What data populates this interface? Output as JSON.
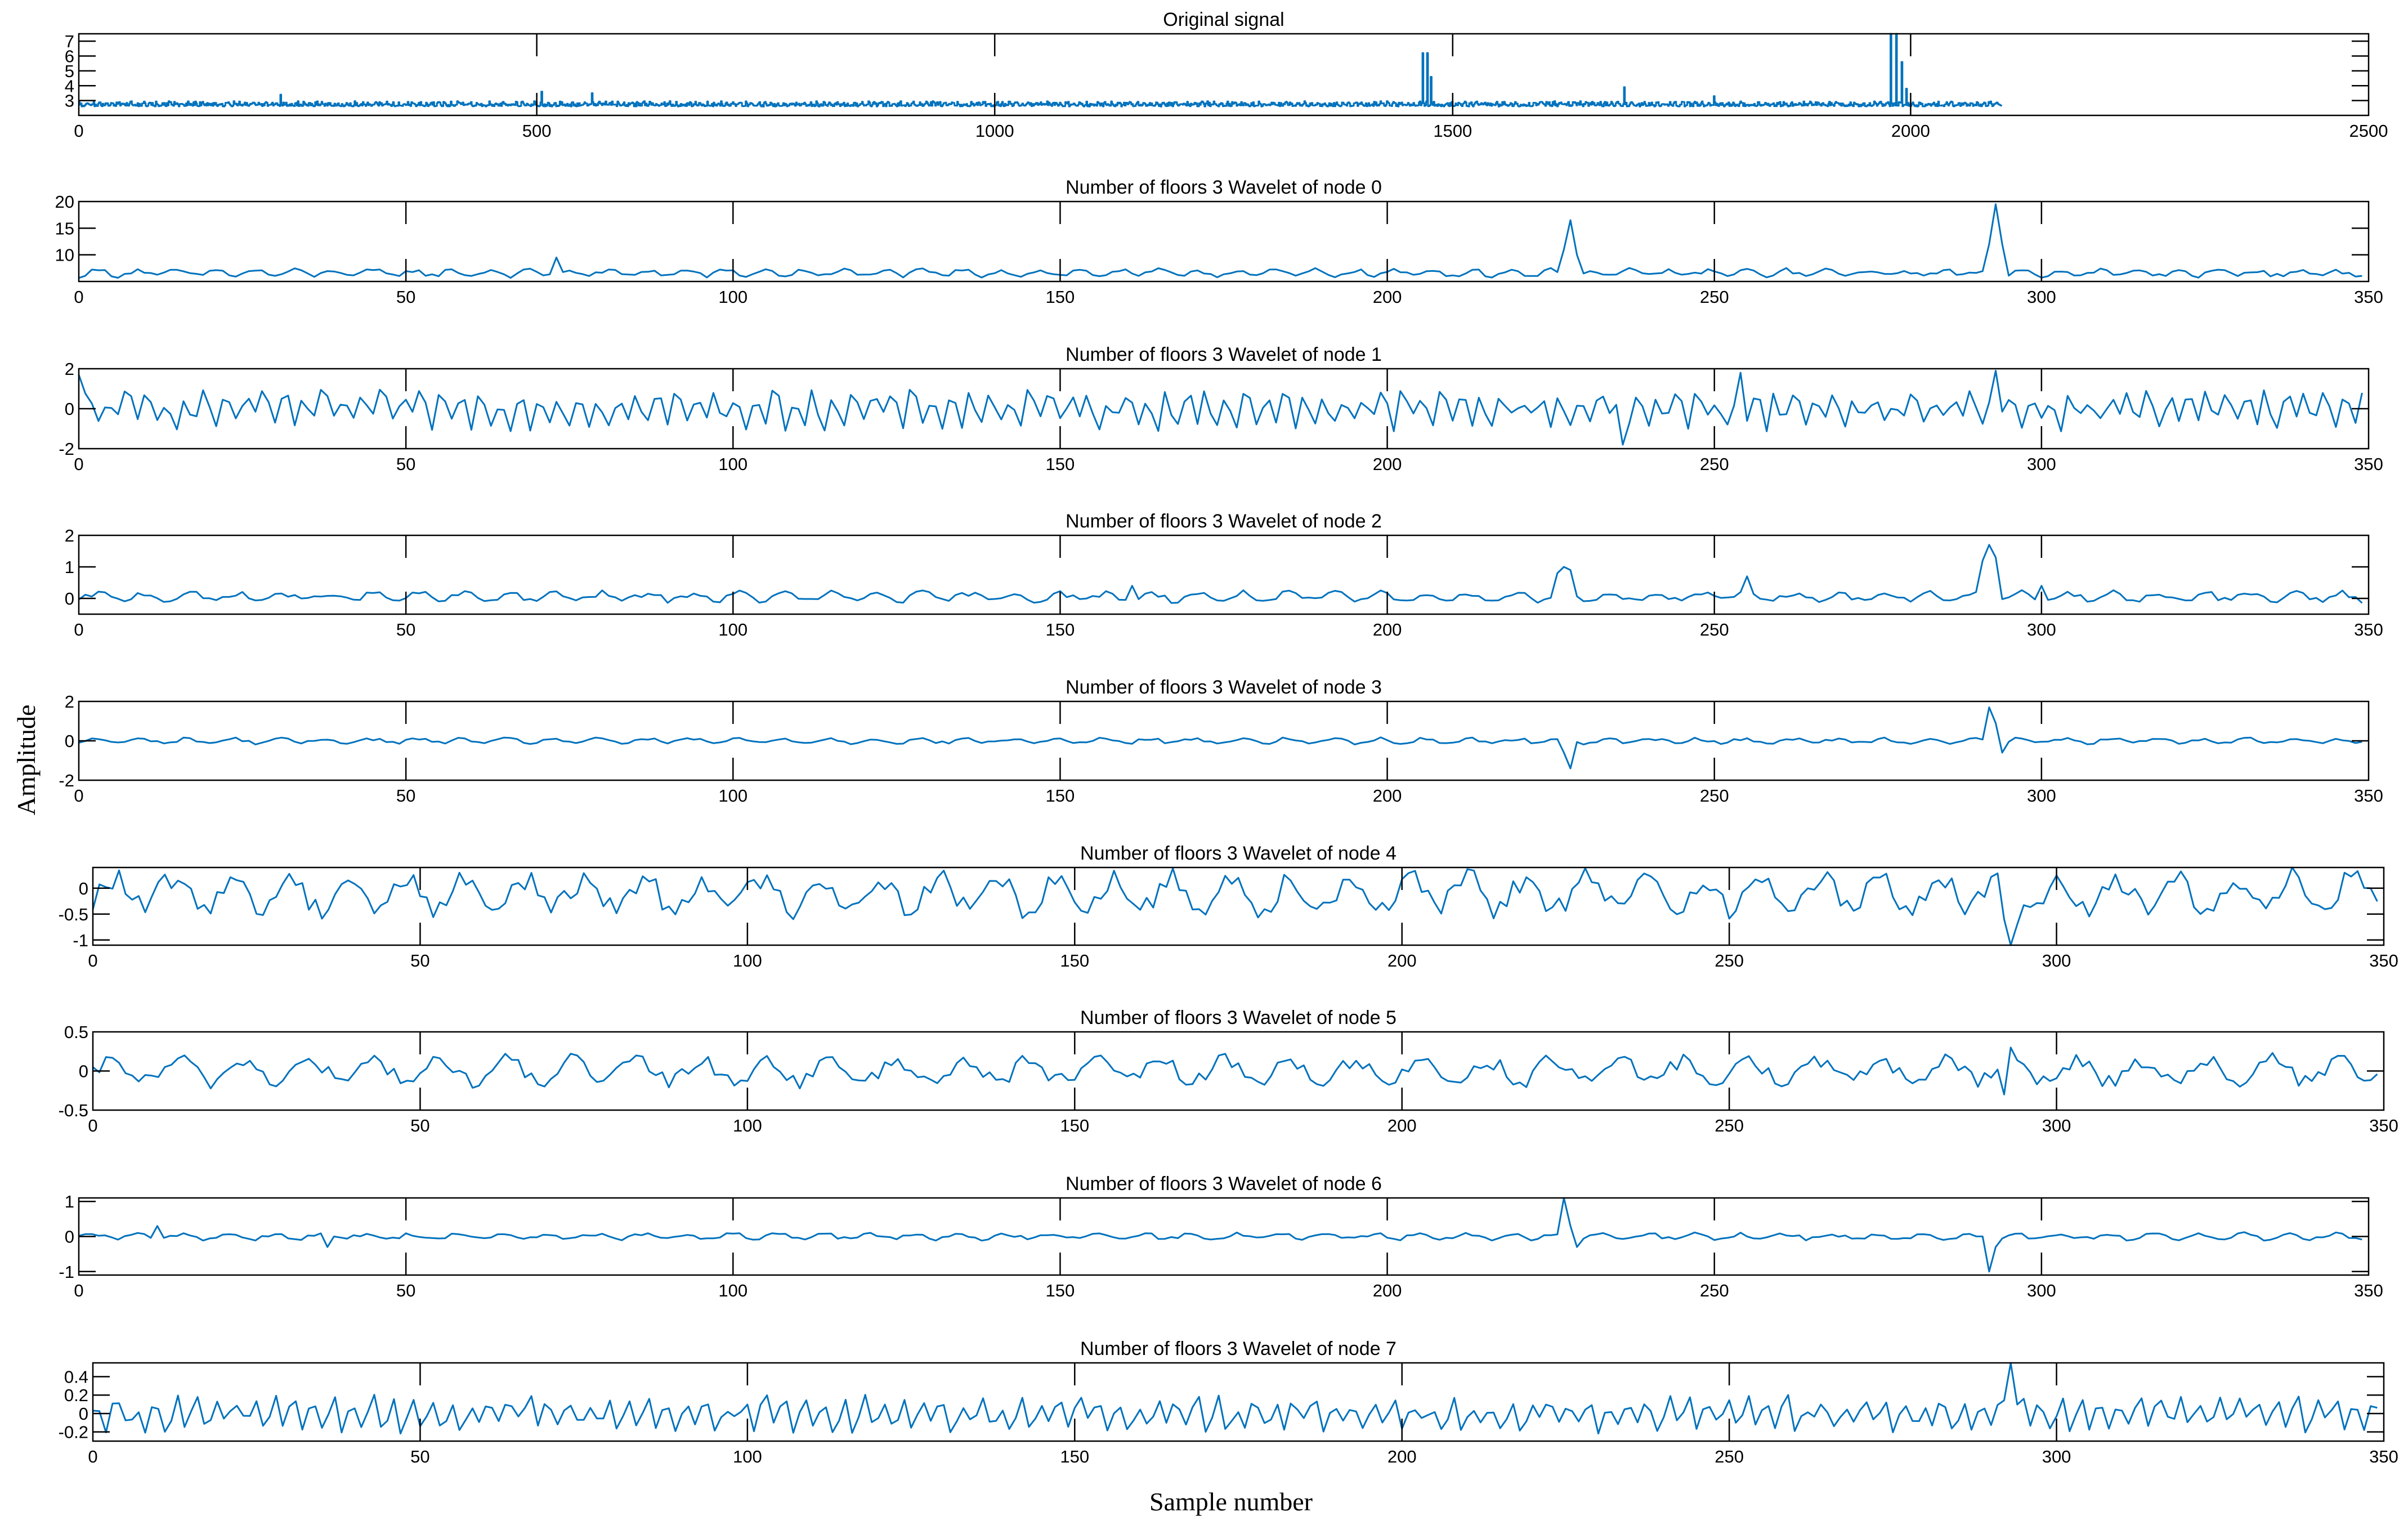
{
  "figure": {
    "xlabel": "Sample number",
    "ylabel": "Amplitude",
    "line_color": "#0072BD"
  },
  "chart_data": [
    {
      "type": "line",
      "title": "Original signal",
      "xlim": [
        0,
        2500
      ],
      "ylim": [
        2,
        7.5
      ],
      "xticks": [
        0,
        500,
        1000,
        1500,
        2000,
        2500
      ],
      "yticks": [
        3,
        4,
        5,
        6,
        7
      ],
      "step": true,
      "n_points": 2100,
      "baseline": 2.6,
      "noise": 0.35,
      "noise_period": 14,
      "spikes": [
        {
          "x": 220,
          "y": 3.4
        },
        {
          "x": 505,
          "y": 3.6
        },
        {
          "x": 560,
          "y": 3.5
        },
        {
          "x": 1467,
          "y": 6.2
        },
        {
          "x": 1472,
          "y": 6.2
        },
        {
          "x": 1476,
          "y": 4.6
        },
        {
          "x": 1687,
          "y": 3.9
        },
        {
          "x": 1785,
          "y": 3.3
        },
        {
          "x": 1978,
          "y": 7.6
        },
        {
          "x": 1984,
          "y": 7.6
        },
        {
          "x": 1990,
          "y": 5.6
        },
        {
          "x": 1995,
          "y": 3.8
        }
      ]
    },
    {
      "type": "line",
      "title": "Number of floors 3  Wavelet of node 0",
      "xlim": [
        0,
        350
      ],
      "ylim": [
        5,
        20
      ],
      "xticks": [
        0,
        50,
        100,
        150,
        200,
        250,
        300,
        350
      ],
      "yticks": [
        10,
        15,
        20
      ],
      "n_points": 350,
      "baseline": 6.6,
      "noise": 0.9,
      "noise_period": 6,
      "spikes": [
        {
          "x": 73,
          "y": 9.5
        },
        {
          "x": 227,
          "y": 11
        },
        {
          "x": 228,
          "y": 16.5
        },
        {
          "x": 229,
          "y": 10
        },
        {
          "x": 292,
          "y": 12
        },
        {
          "x": 293,
          "y": 19.5
        },
        {
          "x": 294,
          "y": 12
        }
      ]
    },
    {
      "type": "line",
      "title": "Number of floors 3  Wavelet of node 1",
      "xlim": [
        0,
        350
      ],
      "ylim": [
        -2,
        2
      ],
      "xticks": [
        0,
        50,
        100,
        150,
        200,
        250,
        300,
        350
      ],
      "yticks": [
        -2,
        0,
        2
      ],
      "n_points": 350,
      "baseline": 0,
      "noise": 1.1,
      "noise_period": 3,
      "spikes": [
        {
          "x": 0,
          "y": 1.7
        },
        {
          "x": 236,
          "y": -1.8
        },
        {
          "x": 254,
          "y": 1.8
        },
        {
          "x": 293,
          "y": 1.9
        }
      ]
    },
    {
      "type": "line",
      "title": "Number of floors 3  Wavelet of node 2",
      "xlim": [
        0,
        350
      ],
      "ylim": [
        -0.5,
        2
      ],
      "xticks": [
        0,
        50,
        100,
        150,
        200,
        250,
        300,
        350
      ],
      "yticks": [
        0,
        1,
        2
      ],
      "n_points": 350,
      "baseline": 0.05,
      "noise": 0.2,
      "noise_period": 7,
      "spikes": [
        {
          "x": 161,
          "y": 0.4
        },
        {
          "x": 226,
          "y": 0.8
        },
        {
          "x": 227,
          "y": 1.0
        },
        {
          "x": 228,
          "y": 0.9
        },
        {
          "x": 255,
          "y": 0.7
        },
        {
          "x": 291,
          "y": 1.2
        },
        {
          "x": 292,
          "y": 1.7
        },
        {
          "x": 293,
          "y": 1.3
        },
        {
          "x": 300,
          "y": 0.4
        }
      ]
    },
    {
      "type": "line",
      "title": "Number of floors 3  Wavelet of node 3",
      "xlim": [
        0,
        350
      ],
      "ylim": [
        -2,
        2
      ],
      "xticks": [
        0,
        50,
        100,
        150,
        200,
        250,
        300,
        350
      ],
      "yticks": [
        -2,
        0,
        2
      ],
      "n_points": 350,
      "baseline": 0,
      "noise": 0.18,
      "noise_period": 7,
      "spikes": [
        {
          "x": 227,
          "y": -0.6
        },
        {
          "x": 228,
          "y": -1.4
        },
        {
          "x": 292,
          "y": 1.7
        },
        {
          "x": 293,
          "y": 0.9
        },
        {
          "x": 294,
          "y": -0.6
        }
      ]
    },
    {
      "type": "line",
      "title": "Number of floors 3  Wavelet of node 4",
      "xlim": [
        0,
        350
      ],
      "ylim": [
        -1.1,
        0.4
      ],
      "xticks": [
        0,
        50,
        100,
        150,
        200,
        250,
        300,
        350
      ],
      "yticks": [
        -1,
        -0.5,
        0
      ],
      "n_points": 350,
      "baseline": -0.1,
      "noise": 0.5,
      "noise_period": 9,
      "spikes": [
        {
          "x": 292,
          "y": -0.6
        },
        {
          "x": 293,
          "y": -1.1
        },
        {
          "x": 294,
          "y": -0.7
        }
      ]
    },
    {
      "type": "line",
      "title": "Number of floors 3  Wavelet of node 5",
      "xlim": [
        0,
        350
      ],
      "ylim": [
        -0.5,
        0.5
      ],
      "xticks": [
        0,
        50,
        100,
        150,
        200,
        250,
        300,
        350
      ],
      "yticks": [
        -0.5,
        0,
        0.5
      ],
      "n_points": 350,
      "baseline": 0,
      "noise": 0.22,
      "noise_period": 10,
      "spikes": [
        {
          "x": 292,
          "y": -0.3
        },
        {
          "x": 293,
          "y": 0.3
        }
      ]
    },
    {
      "type": "line",
      "title": "Number of floors 3  Wavelet of node 6",
      "xlim": [
        0,
        350
      ],
      "ylim": [
        -1.1,
        1.1
      ],
      "xticks": [
        0,
        50,
        100,
        150,
        200,
        250,
        300,
        350
      ],
      "yticks": [
        -1,
        0,
        1
      ],
      "n_points": 350,
      "baseline": 0,
      "noise": 0.12,
      "noise_period": 7,
      "spikes": [
        {
          "x": 12,
          "y": 0.3
        },
        {
          "x": 38,
          "y": -0.3
        },
        {
          "x": 227,
          "y": 1.1
        },
        {
          "x": 228,
          "y": 0.3
        },
        {
          "x": 229,
          "y": -0.3
        },
        {
          "x": 292,
          "y": -1.0
        },
        {
          "x": 293,
          "y": -0.3
        }
      ]
    },
    {
      "type": "line",
      "title": "Number of floors 3  Wavelet of node 7",
      "xlim": [
        0,
        350
      ],
      "ylim": [
        -0.3,
        0.55
      ],
      "xticks": [
        0,
        50,
        100,
        150,
        200,
        250,
        300,
        350
      ],
      "yticks": [
        -0.2,
        0,
        0.2,
        0.4
      ],
      "n_points": 350,
      "baseline": 0,
      "noise": 0.22,
      "noise_period": 3,
      "spikes": [
        {
          "x": 293,
          "y": 0.55
        }
      ]
    }
  ]
}
